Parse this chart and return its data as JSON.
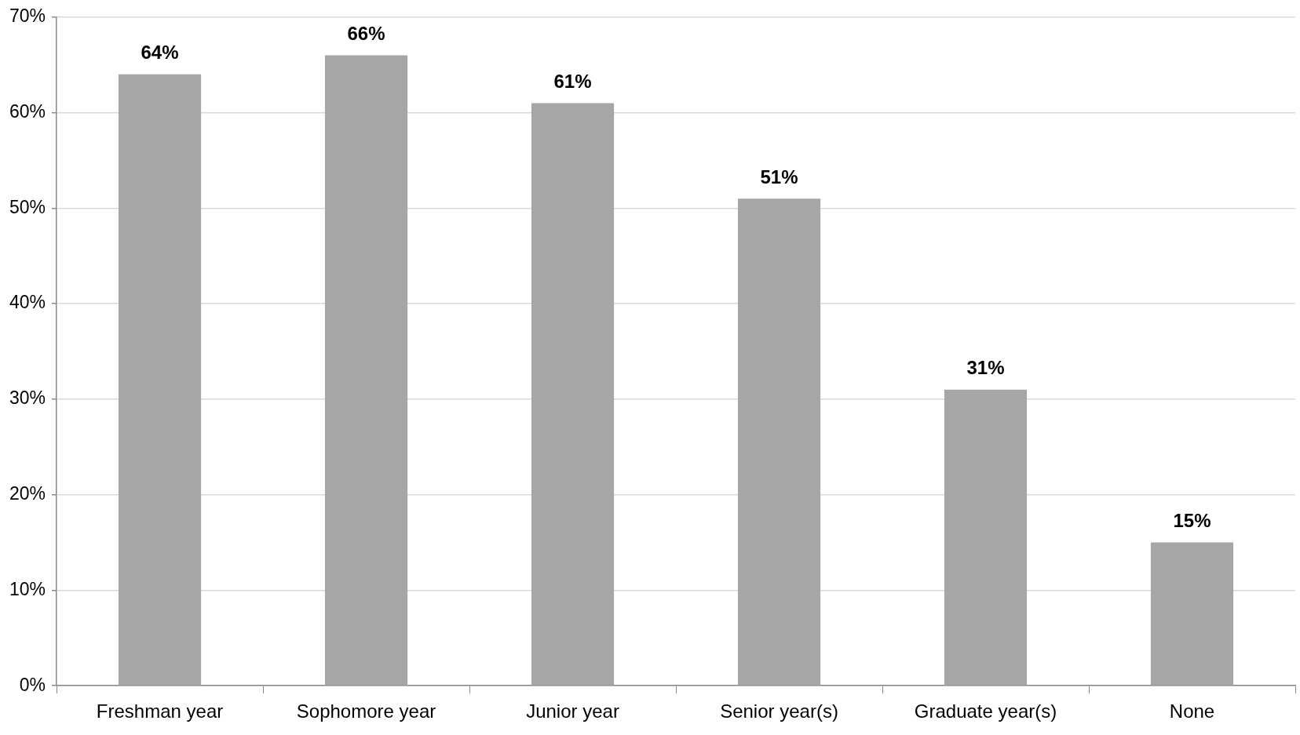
{
  "chart_data": {
    "type": "bar",
    "categories": [
      "Freshman year",
      "Sophomore year",
      "Junior year",
      "Senior year(s)",
      "Graduate year(s)",
      "None"
    ],
    "values": [
      64,
      66,
      61,
      51,
      31,
      15
    ],
    "value_labels": [
      "64%",
      "66%",
      "61%",
      "51%",
      "31%",
      "15%"
    ],
    "color": "#a6a6a6",
    "ylim": [
      0,
      70
    ],
    "yticks": [
      {
        "value": 0,
        "label": "0%"
      },
      {
        "value": 10,
        "label": "10%"
      },
      {
        "value": 20,
        "label": "20%"
      },
      {
        "value": 30,
        "label": "30%"
      },
      {
        "value": 40,
        "label": "40%"
      },
      {
        "value": 50,
        "label": "50%"
      },
      {
        "value": 60,
        "label": "60%"
      },
      {
        "value": 70,
        "label": "70%"
      }
    ],
    "grid": "y",
    "legend": false
  }
}
